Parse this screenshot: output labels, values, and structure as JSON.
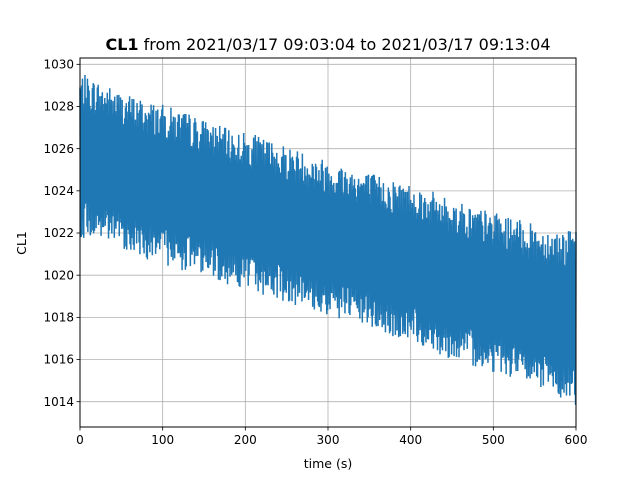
{
  "chart_data": {
    "type": "line",
    "title_bold": "CL1",
    "title_rest": " from 2021/03/17 09:03:04 to 2021/03/17 09:13:04",
    "xlabel": "time (s)",
    "ylabel": "CL1",
    "xlim": [
      0,
      600
    ],
    "ylim": [
      1012.8,
      1030.3
    ],
    "x_ticks": [
      0,
      100,
      200,
      300,
      400,
      500,
      600
    ],
    "y_ticks": [
      1014,
      1016,
      1018,
      1020,
      1022,
      1024,
      1026,
      1028,
      1030
    ],
    "grid": true,
    "series": [
      {
        "color": "#1f77b4",
        "upper_envelope": [
          [
            0,
            1029.6
          ],
          [
            25,
            1029.2
          ],
          [
            50,
            1028.7
          ],
          [
            75,
            1028.4
          ],
          [
            100,
            1028.1
          ],
          [
            125,
            1027.8
          ],
          [
            150,
            1027.4
          ],
          [
            175,
            1027.0
          ],
          [
            200,
            1026.8
          ],
          [
            225,
            1026.5
          ],
          [
            250,
            1026.2
          ],
          [
            275,
            1025.8
          ],
          [
            300,
            1025.5
          ],
          [
            325,
            1025.2
          ],
          [
            350,
            1024.9
          ],
          [
            375,
            1024.6
          ],
          [
            400,
            1024.4
          ],
          [
            425,
            1024.0
          ],
          [
            450,
            1023.6
          ],
          [
            475,
            1023.3
          ],
          [
            500,
            1023.0
          ],
          [
            525,
            1022.7
          ],
          [
            550,
            1022.4
          ],
          [
            575,
            1022.2
          ],
          [
            600,
            1022.1
          ]
        ],
        "lower_envelope": [
          [
            0,
            1021.8
          ],
          [
            25,
            1021.6
          ],
          [
            50,
            1021.3
          ],
          [
            75,
            1020.8
          ],
          [
            100,
            1020.5
          ],
          [
            125,
            1020.2
          ],
          [
            150,
            1020.1
          ],
          [
            175,
            1019.6
          ],
          [
            200,
            1019.3
          ],
          [
            225,
            1019.0
          ],
          [
            250,
            1018.7
          ],
          [
            275,
            1018.4
          ],
          [
            300,
            1018.0
          ],
          [
            325,
            1017.8
          ],
          [
            350,
            1017.5
          ],
          [
            375,
            1017.0
          ],
          [
            400,
            1016.9
          ],
          [
            425,
            1016.4
          ],
          [
            450,
            1016.0
          ],
          [
            475,
            1015.7
          ],
          [
            500,
            1015.4
          ],
          [
            525,
            1015.1
          ],
          [
            550,
            1014.7
          ],
          [
            575,
            1014.4
          ],
          [
            600,
            1013.6
          ]
        ],
        "sample_interval_s": 0.5
      }
    ]
  }
}
